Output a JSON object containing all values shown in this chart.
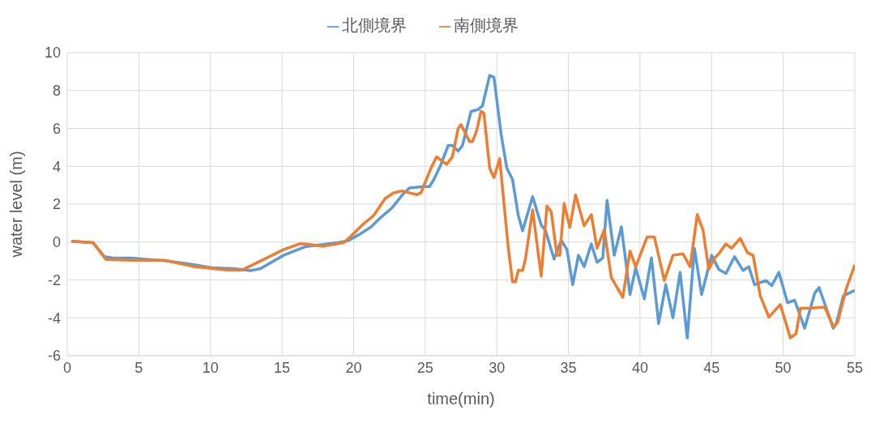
{
  "chart_data": {
    "type": "line",
    "xlabel": "time(min)",
    "ylabel": "water level (m)",
    "xlim": [
      0,
      55
    ],
    "xticks": [
      0,
      5,
      10,
      15,
      20,
      25,
      30,
      35,
      40,
      45,
      50,
      55
    ],
    "ylim": [
      -6,
      10
    ],
    "yticks": [
      -6,
      -4,
      -2,
      0,
      2,
      4,
      6,
      8,
      10
    ],
    "grid": true,
    "legend": "top",
    "marker": "none",
    "line_style": "solid",
    "series": [
      {
        "name": "北側境界",
        "color": "#5b9bd5",
        "x": [
          0.3,
          1.8,
          2.6,
          3.2,
          4.5,
          7.0,
          8.4,
          10.1,
          11.6,
          12.8,
          13.5,
          15.1,
          16.6,
          18.9,
          19.6,
          20.4,
          21.2,
          21.9,
          22.7,
          23.4,
          23.9,
          24.9,
          25.3,
          25.6,
          26.1,
          26.6,
          26.9,
          27.3,
          27.6,
          28.2,
          28.7,
          29.0,
          29.5,
          29.8,
          30.3,
          30.7,
          31.1,
          31.5,
          31.8,
          32.5,
          33.1,
          33.4,
          34.0,
          34.5,
          34.9,
          35.3,
          35.7,
          36.1,
          36.6,
          37.0,
          37.4,
          37.7,
          38.2,
          38.7,
          39.3,
          39.7,
          40.3,
          40.8,
          41.3,
          41.8,
          42.3,
          42.8,
          43.3,
          43.8,
          44.3,
          45.0,
          45.5,
          46.0,
          46.6,
          47.2,
          47.6,
          48.0,
          48.8,
          49.2,
          49.7,
          50.3,
          50.8,
          51.5,
          52.2,
          52.5,
          53.5,
          53.7,
          54.2,
          55
        ],
        "values": [
          0.04,
          -0.03,
          -0.77,
          -0.84,
          -0.84,
          -1.0,
          -1.14,
          -1.36,
          -1.4,
          -1.51,
          -1.4,
          -0.7,
          -0.25,
          -0.03,
          0.07,
          0.4,
          0.79,
          1.3,
          1.82,
          2.49,
          2.86,
          2.93,
          2.93,
          3.3,
          4.1,
          5.1,
          5.1,
          4.8,
          5.1,
          6.9,
          7.0,
          7.2,
          8.8,
          8.7,
          5.7,
          3.9,
          3.3,
          1.4,
          0.6,
          2.4,
          0.9,
          0.6,
          -0.9,
          0.1,
          -0.4,
          -2.25,
          -0.7,
          -1.3,
          -0.1,
          -1.07,
          -0.84,
          2.2,
          -0.7,
          0.8,
          -2.77,
          -1.36,
          -3.0,
          -0.84,
          -4.3,
          -2.25,
          -4.0,
          -1.6,
          -5.06,
          -0.33,
          -2.77,
          -0.7,
          -1.44,
          -1.66,
          -0.77,
          -1.5,
          -1.3,
          -2.25,
          -2.03,
          -2.3,
          -1.6,
          -3.2,
          -3.07,
          -4.55,
          -2.7,
          -2.4,
          -4.55,
          -4.33,
          -2.84,
          -2.55
        ]
      },
      {
        "name": "南側境界",
        "color": "#ed7d31",
        "x": [
          0.3,
          1.8,
          2.7,
          4.6,
          6.8,
          8.8,
          11.1,
          12.2,
          13.5,
          15.1,
          16.2,
          16.6,
          17.9,
          19.3,
          19.8,
          20.6,
          21.4,
          22.2,
          22.8,
          23.4,
          24.4,
          24.7,
          25.4,
          25.8,
          26.5,
          26.9,
          27.3,
          27.5,
          28.1,
          28.3,
          28.6,
          28.9,
          29.1,
          29.5,
          29.8,
          30.2,
          30.8,
          31.1,
          31.3,
          31.5,
          31.8,
          32.0,
          32.5,
          33.1,
          33.5,
          33.8,
          34.2,
          34.4,
          34.7,
          35.1,
          35.5,
          36.1,
          36.6,
          37.0,
          37.5,
          38.0,
          38.8,
          39.3,
          39.7,
          40.5,
          41.0,
          41.7,
          42.3,
          43.0,
          43.5,
          44.0,
          44.4,
          44.8,
          45.2,
          45.5,
          46.0,
          46.4,
          47.0,
          47.5,
          47.9,
          48.4,
          49.0,
          49.8,
          50.5,
          50.9,
          51.2,
          51.8,
          52.9,
          53.5,
          53.8,
          54.4,
          55
        ],
        "values": [
          0.04,
          -0.03,
          -0.92,
          -0.96,
          -0.96,
          -1.29,
          -1.48,
          -1.48,
          -1.0,
          -0.4,
          -0.1,
          -0.1,
          -0.22,
          -0.03,
          0.3,
          0.9,
          1.4,
          2.3,
          2.6,
          2.7,
          2.5,
          2.6,
          3.9,
          4.5,
          4.1,
          4.5,
          6.0,
          6.2,
          5.3,
          5.3,
          5.9,
          6.9,
          6.8,
          3.9,
          3.4,
          4.4,
          -0.3,
          -2.1,
          -2.1,
          -1.5,
          -1.5,
          -0.9,
          1.7,
          -1.8,
          1.9,
          1.6,
          -0.7,
          -0.7,
          2.04,
          0.78,
          2.49,
          0.86,
          1.45,
          -0.33,
          0.64,
          -1.88,
          -2.92,
          -0.48,
          -1.3,
          0.27,
          0.27,
          -2.03,
          -0.7,
          -0.62,
          -1.3,
          1.45,
          0.64,
          -1.44,
          -0.84,
          -0.62,
          -0.1,
          -0.33,
          0.2,
          -0.55,
          -0.7,
          -2.84,
          -3.96,
          -3.3,
          -5.06,
          -4.84,
          -3.5,
          -3.5,
          -3.43,
          -4.47,
          -4.25,
          -2.47,
          -1.2
        ]
      }
    ]
  }
}
